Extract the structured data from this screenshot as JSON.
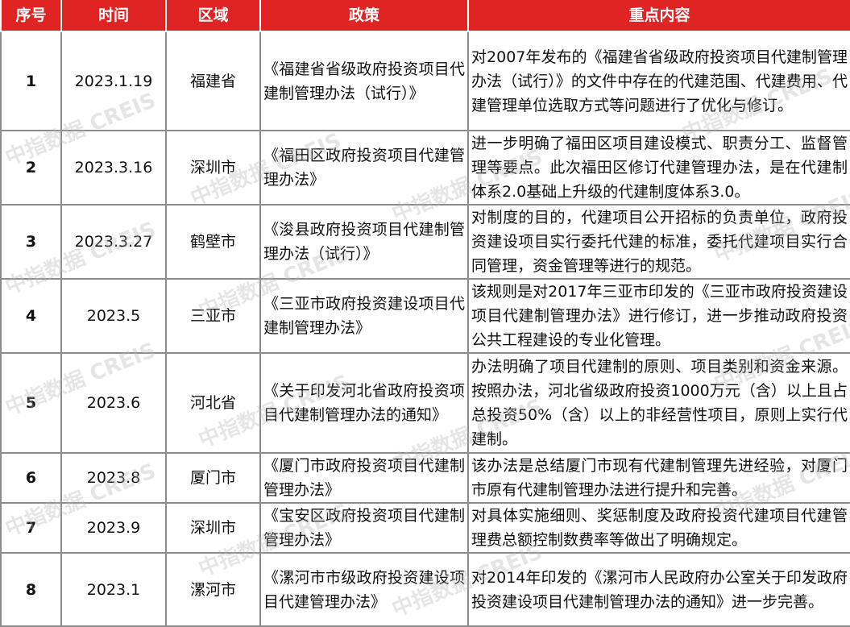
{
  "headers": [
    "序号",
    "时间",
    "区域",
    "政策",
    "重点内容"
  ],
  "header_color": "#e02424",
  "rows": [
    {
      "no": "1",
      "date": "2023.1.19",
      "region": "福建省",
      "policy": "《福建省省级政府投资项目代建制管理办法（试行）》",
      "content": "对2007年发布的《福建省省级政府投资项目代建制管理办法（试行）》的文件中存在的代建范围、代建费用、代建管理单位选取方式等问题进行了优化与修订。"
    },
    {
      "no": "2",
      "date": "2023.3.16",
      "region": "深圳市",
      "policy": "《福田区政府投资项目代建管理办法》",
      "content": "进一步明确了福田区项目建设模式、职责分工、监督管理等要点。此次福田区修订代建管理办法，是在代建制体系2.0基础上升级的代建制度体系3.0。"
    },
    {
      "no": "3",
      "date": "2023.3.27",
      "region": "鹤壁市",
      "policy": "《浚县政府投资项目代建制管理办法（试行）》",
      "content": "对制度的目的，代建项目公开招标的负责单位，政府投资建设项目实行委托代建的标准，委托代建项目实行合同管理，资金管理等进行的规范。"
    },
    {
      "no": "4",
      "date": "2023.5",
      "region": "三亚市",
      "policy": "《三亚市政府投资建设项目代建制管理办法》",
      "content": "该规则是对2017年三亚市印发的《三亚市政府投资建设项目代建制管理办法》进行修订，进一步推动政府投资公共工程建设的专业化管理。"
    },
    {
      "no": "5",
      "date": "2023.6",
      "region": "河北省",
      "policy": "《关于印发河北省政府投资项目代建制管理办法的通知》",
      "content": "办法明确了项目代建制的原则、项目类别和资金来源。按照办法，河北省级政府投资1000万元（含）以上且占总投资50%（含）以上的非经营性项目，原则上实行代建制。"
    },
    {
      "no": "6",
      "date": "2023.8",
      "region": "厦门市",
      "policy": "《厦门市政府投资项目代建制管理办法》",
      "content": "该办法是总结厦门市现有代建制管理先进经验，对厦门市原有代建制管理办法进行提升和完善。"
    },
    {
      "no": "7",
      "date": "2023.9",
      "region": "深圳市",
      "policy": "《宝安区政府投资项目代建制管理办法》",
      "content": "对具体实施细则、奖惩制度及政府投资代建项目代建管理费总额控制数费率等做出了明确规定。"
    },
    {
      "no": "8",
      "date": "2023.1",
      "region": "漯河市",
      "policy": "《漯河市市级政府投资建设项目代建管理办法》",
      "content": "对2014年印发的《漯河市人民政府办公室关于印发政府投资建设项目代建制管理办法的通知》进一步完善。"
    }
  ],
  "watermark": "中指数据 CREIS"
}
